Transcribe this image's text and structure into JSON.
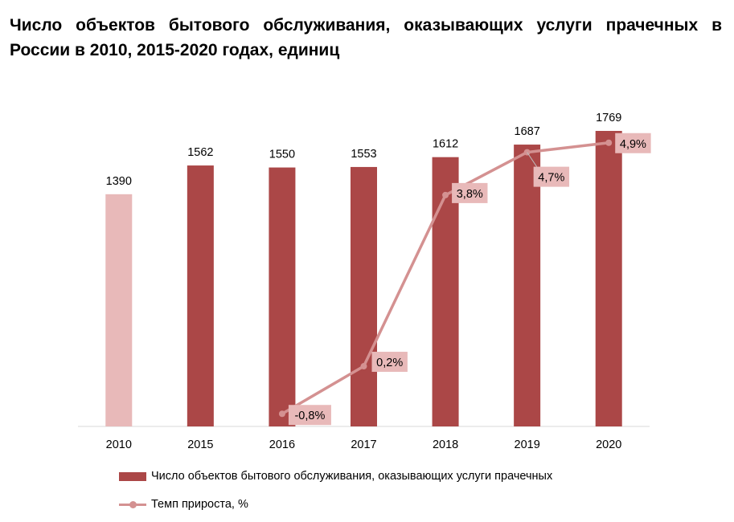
{
  "title": "Число объектов бытового обслуживания, оказывающих услуги прачечных в России в 2010, 2015-2020 годах, единиц",
  "colors": {
    "bar": "#ab4747",
    "bar_first": "#e8b9b9",
    "line": "#d49191",
    "label_box": "#e8b9b9",
    "axis": "#d9d9d9"
  },
  "chart_data": {
    "type": "bar",
    "categories": [
      "2010",
      "2015",
      "2016",
      "2017",
      "2018",
      "2019",
      "2020"
    ],
    "series": [
      {
        "name": "Число объектов бытового обслуживания, оказывающих услуги прачечных",
        "type": "bar",
        "values": [
          1390,
          1562,
          1550,
          1553,
          1612,
          1687,
          1769
        ],
        "labels": [
          "1390",
          "1562",
          "1550",
          "1553",
          "1612",
          "1687",
          "1769"
        ]
      },
      {
        "name": "Темп прироста, %",
        "type": "line",
        "values": [
          null,
          null,
          -0.8,
          0.2,
          3.8,
          4.7,
          4.9
        ],
        "labels": [
          "",
          "",
          "-0,8%",
          "0,2%",
          "3,8%",
          "4,7%",
          "4,9%"
        ]
      }
    ],
    "ylim": [
      0,
      1769
    ],
    "y2lim": [
      -1.1,
      5.2
    ],
    "grid": false,
    "legend_position": "bottom"
  },
  "legend": {
    "bar_label": "Число объектов бытового обслуживания, оказывающих услуги прачечных",
    "line_label": "Темп прироста, %"
  }
}
